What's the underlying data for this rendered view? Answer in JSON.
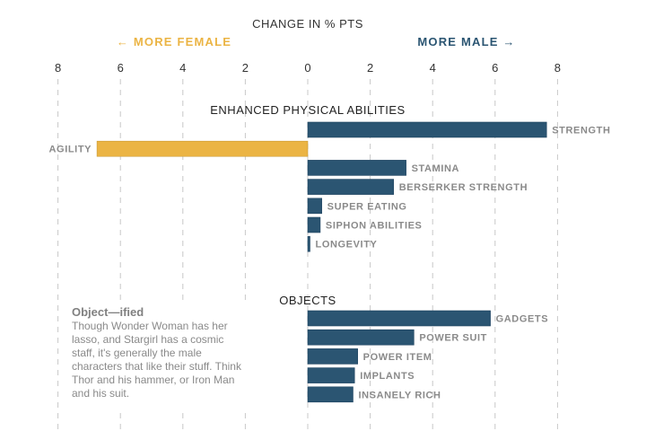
{
  "chart_data": {
    "type": "bar",
    "orientation": "horizontal",
    "title": "CHANGE IN % PTS",
    "direction_labels": {
      "left": "← MORE FEMALE",
      "right": "MORE MALE →"
    },
    "xlim": [
      -8,
      8
    ],
    "x_ticks": [
      -8,
      -6,
      -4,
      -2,
      0,
      2,
      4,
      6,
      8
    ],
    "x_tick_labels": [
      "8",
      "6",
      "4",
      "2",
      "0",
      "2",
      "4",
      "6",
      "8"
    ],
    "grid": true,
    "groups": [
      {
        "title": "ENHANCED PHYSICAL ABILITIES",
        "categories": [
          "STRENGTH",
          "AGILITY",
          "STAMINA",
          "BERSERKER STRENGTH",
          "SUPER EATING",
          "SIPHON ABILITIES",
          "LONGEVITY"
        ],
        "values": [
          7.65,
          -6.75,
          3.15,
          2.75,
          0.45,
          0.4,
          0.07
        ]
      },
      {
        "title": "OBJECTS",
        "categories": [
          "GADGETS",
          "POWER SUIT",
          "POWER ITEM",
          "IMPLANTS",
          "INSANELY RICH"
        ],
        "values": [
          5.85,
          3.4,
          1.6,
          1.5,
          1.45
        ]
      }
    ],
    "colors": {
      "male": "#2b5572",
      "female": "#ebb444",
      "text": "#333333",
      "bar_label": "#8a8a8a"
    }
  },
  "annotation": {
    "title": "Object—ified",
    "body": "Though Wonder Woman has her lasso, and Stargirl has a cosmic staff, it's generally the male characters that like their stuff. Think Thor and his hammer, or Iron Man and his suit."
  }
}
